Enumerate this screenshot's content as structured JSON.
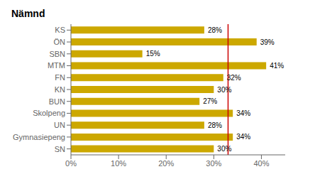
{
  "chart_data": {
    "type": "bar",
    "title": "Nämnd",
    "orientation": "horizontal",
    "categories": [
      "KS",
      "ÖN",
      "SBN",
      "MTM",
      "FN",
      "KN",
      "BUN",
      "Skolpeng",
      "UN",
      "Gymnasiepeng",
      "SN"
    ],
    "values": [
      28,
      39,
      15,
      41,
      32,
      30,
      27,
      34,
      28,
      34,
      30
    ],
    "value_labels": [
      "28%",
      "39%",
      "15%",
      "41%",
      "32%",
      "30%",
      "27%",
      "34%",
      "28%",
      "34%",
      "30%"
    ],
    "data_labels": true,
    "color": "#CCA800",
    "xlim": [
      0,
      45
    ],
    "xticks": [
      {
        "value": 0,
        "label": "0%"
      },
      {
        "value": 10,
        "label": "10%"
      },
      {
        "value": 20,
        "label": "20%"
      },
      {
        "value": 30,
        "label": "30%"
      },
      {
        "value": 40,
        "label": "40%"
      }
    ],
    "vline": 33,
    "vline_color": "#CC0000",
    "grid": false
  }
}
